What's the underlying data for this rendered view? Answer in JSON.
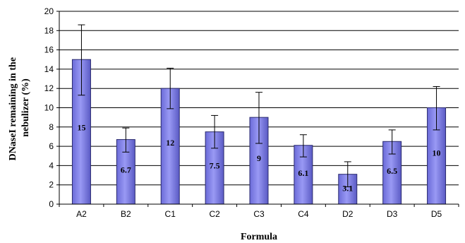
{
  "chart_data": {
    "type": "bar",
    "categories": [
      "A2",
      "B2",
      "C1",
      "C2",
      "C3",
      "C4",
      "D2",
      "D3",
      "D5"
    ],
    "values": [
      15,
      6.7,
      12,
      7.5,
      9,
      6.1,
      3.1,
      6.5,
      10
    ],
    "data_labels": [
      "15",
      "6.7",
      "12",
      "7.5",
      "9",
      "6.1",
      "3.1",
      "6.5",
      "10"
    ],
    "error_low": [
      11.3,
      5.4,
      9.9,
      5.8,
      6.3,
      4.9,
      1.8,
      5.2,
      7.7
    ],
    "error_high": [
      18.6,
      7.9,
      14.1,
      9.2,
      11.6,
      7.2,
      4.4,
      7.7,
      12.2
    ],
    "xlabel": "Formula",
    "ylabel_lines": [
      "DNaseI remaining in the",
      "nebulizer (%)"
    ],
    "ylim": [
      0,
      20
    ],
    "yticks": [
      0,
      2,
      4,
      6,
      8,
      10,
      12,
      14,
      16,
      18,
      20
    ],
    "grid": true,
    "legend": "none",
    "colors": {
      "bar_fill": "#9999f4",
      "bar_edge": "#2a2a6e",
      "grid": "#000000"
    }
  }
}
